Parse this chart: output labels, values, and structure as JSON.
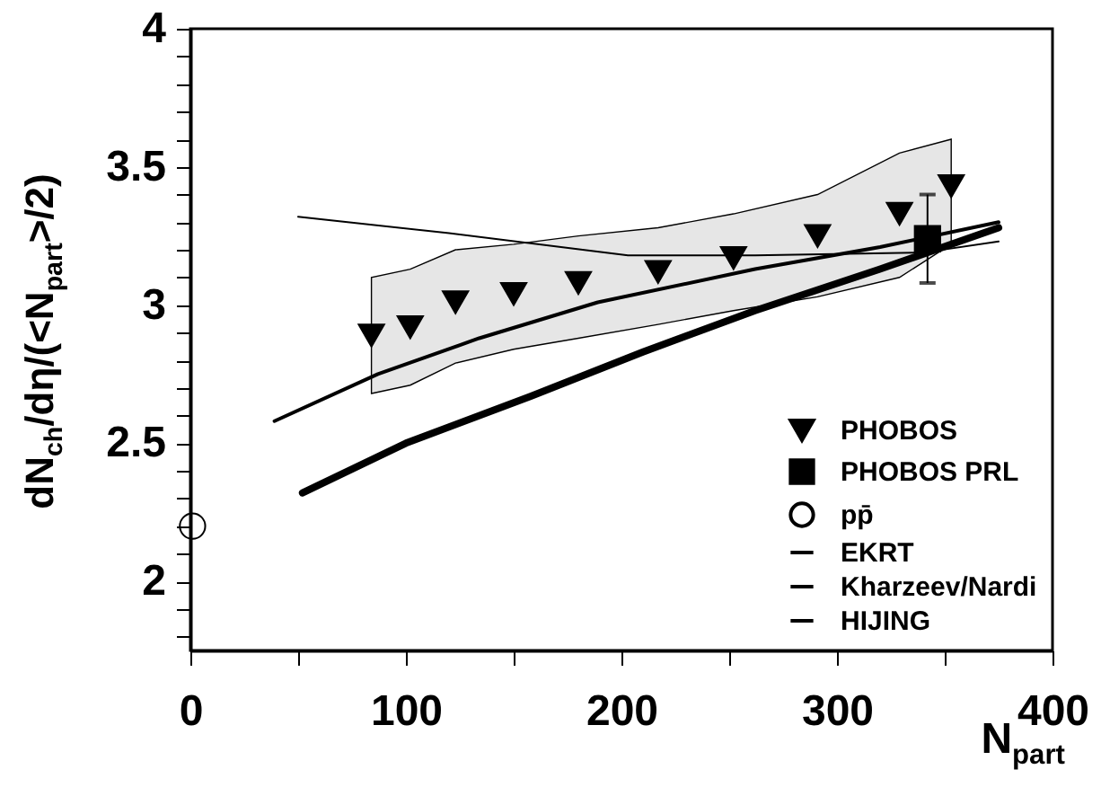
{
  "chart_data": {
    "type": "scatter",
    "xlabel": "N$_{part}$",
    "ylabel": "dN$_{ch}$/dη/(<N$_{part}$>/2)",
    "xlim": [
      0,
      400
    ],
    "ylim": [
      1.75,
      4
    ],
    "xticks": [
      0,
      {
        "value": 50,
        "label": null
      },
      100,
      {
        "value": 150,
        "label": null
      },
      200,
      {
        "value": 250,
        "label": null
      },
      300,
      {
        "value": 350,
        "label": null
      },
      400
    ],
    "yticks": [
      {
        "value": 1.8,
        "label": null
      },
      {
        "value": 1.9,
        "label": null
      },
      2,
      {
        "value": 2.1,
        "label": null
      },
      {
        "value": 2.2,
        "label": null
      },
      {
        "value": 2.3,
        "label": null
      },
      {
        "value": 2.4,
        "label": null
      },
      2.5,
      {
        "value": 2.6,
        "label": null
      },
      {
        "value": 2.7,
        "label": null
      },
      {
        "value": 2.8,
        "label": null
      },
      {
        "value": 2.9,
        "label": null
      },
      3,
      {
        "value": 3.1,
        "label": null
      },
      {
        "value": 3.2,
        "label": null
      },
      {
        "value": 3.3,
        "label": null
      },
      {
        "value": 3.4,
        "label": null
      },
      3.5,
      {
        "value": 3.6,
        "label": null
      },
      {
        "value": 3.7,
        "label": null
      },
      {
        "value": 3.8,
        "label": null
      },
      {
        "value": 3.9,
        "label": null
      },
      4
    ],
    "legend": "bottom right",
    "grid": false,
    "series": [
      {
        "name": "PHOBOS",
        "marker": "triangle",
        "color": "#000000",
        "x": [
          84,
          102,
          123,
          150,
          180,
          217,
          252,
          291,
          329,
          353
        ],
        "values": [
          2.89,
          2.92,
          3.01,
          3.04,
          3.08,
          3.12,
          3.17,
          3.25,
          3.33,
          3.43
        ],
        "lower": [
          2.68,
          2.71,
          2.79,
          2.84,
          2.88,
          2.93,
          2.98,
          3.03,
          3.1,
          3.22
        ],
        "upper": [
          3.1,
          3.13,
          3.2,
          3.22,
          3.25,
          3.28,
          3.33,
          3.4,
          3.55,
          3.6
        ]
      },
      {
        "name": "PHOBOS PRL",
        "marker": "square",
        "color": "#000000",
        "x": [
          342
        ],
        "values": [
          3.24
        ],
        "errors": [
          0.16
        ]
      },
      {
        "name": "pp̄",
        "marker": "circle",
        "color": "#000000",
        "x": [
          1
        ],
        "values": [
          2.2
        ]
      },
      {
        "name": "EKRT",
        "type": "line",
        "color": "#000000",
        "x": [
          50,
          120,
          203,
          262,
          340,
          375
        ],
        "values": [
          3.32,
          3.26,
          3.18,
          3.18,
          3.19,
          3.23
        ]
      },
      {
        "name": "Kharzeev/Nardi",
        "type": "line",
        "color": "#000000",
        "x": [
          39,
          87,
          134,
          189,
          262,
          320,
          375
        ],
        "values": [
          2.58,
          2.75,
          2.88,
          3.01,
          3.13,
          3.21,
          3.3
        ]
      },
      {
        "name": "HIJING",
        "type": "line",
        "color": "#000000",
        "x": [
          52,
          100,
          158,
          210,
          262,
          320,
          375
        ],
        "values": [
          2.32,
          2.5,
          2.67,
          2.83,
          2.98,
          3.13,
          3.28
        ]
      }
    ]
  }
}
